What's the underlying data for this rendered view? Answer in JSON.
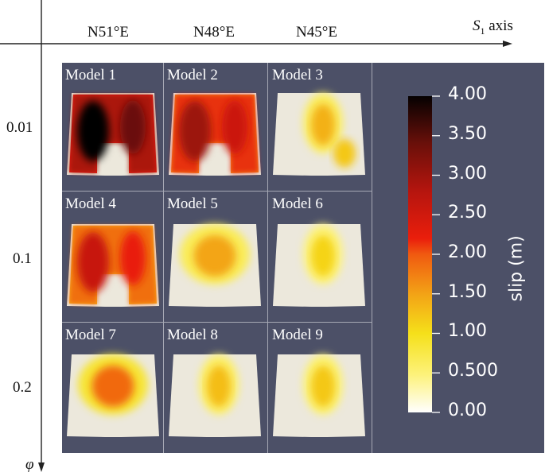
{
  "header": {
    "columns": [
      "N51°E",
      "N48°E",
      "N45°E"
    ],
    "x_axis_label_symbol": "S",
    "x_axis_label_sub": "1",
    "x_axis_label_rest": " axis"
  },
  "rows": {
    "values": [
      "0.01",
      "0.1",
      "0.2"
    ],
    "y_axis_label": "φ"
  },
  "models": [
    {
      "label": "Model 1",
      "peak": 4.0
    },
    {
      "label": "Model 2",
      "peak": 3.0
    },
    {
      "label": "Model 3",
      "peak": 1.4
    },
    {
      "label": "Model 4",
      "peak": 2.6
    },
    {
      "label": "Model 5",
      "peak": 1.5
    },
    {
      "label": "Model 6",
      "peak": 1.1
    },
    {
      "label": "Model 7",
      "peak": 1.9
    },
    {
      "label": "Model 8",
      "peak": 1.3
    },
    {
      "label": "Model 9",
      "peak": 1.2
    }
  ],
  "colorbar": {
    "title": "slip (m)",
    "ticks": [
      "4.00",
      "3.50",
      "3.00",
      "2.50",
      "2.00",
      "1.50",
      "1.00",
      "0.500",
      "0.00"
    ],
    "min": 0,
    "max": 4
  },
  "colors": {
    "background": "#4c5067",
    "fault_surface": "#ece8dc"
  }
}
